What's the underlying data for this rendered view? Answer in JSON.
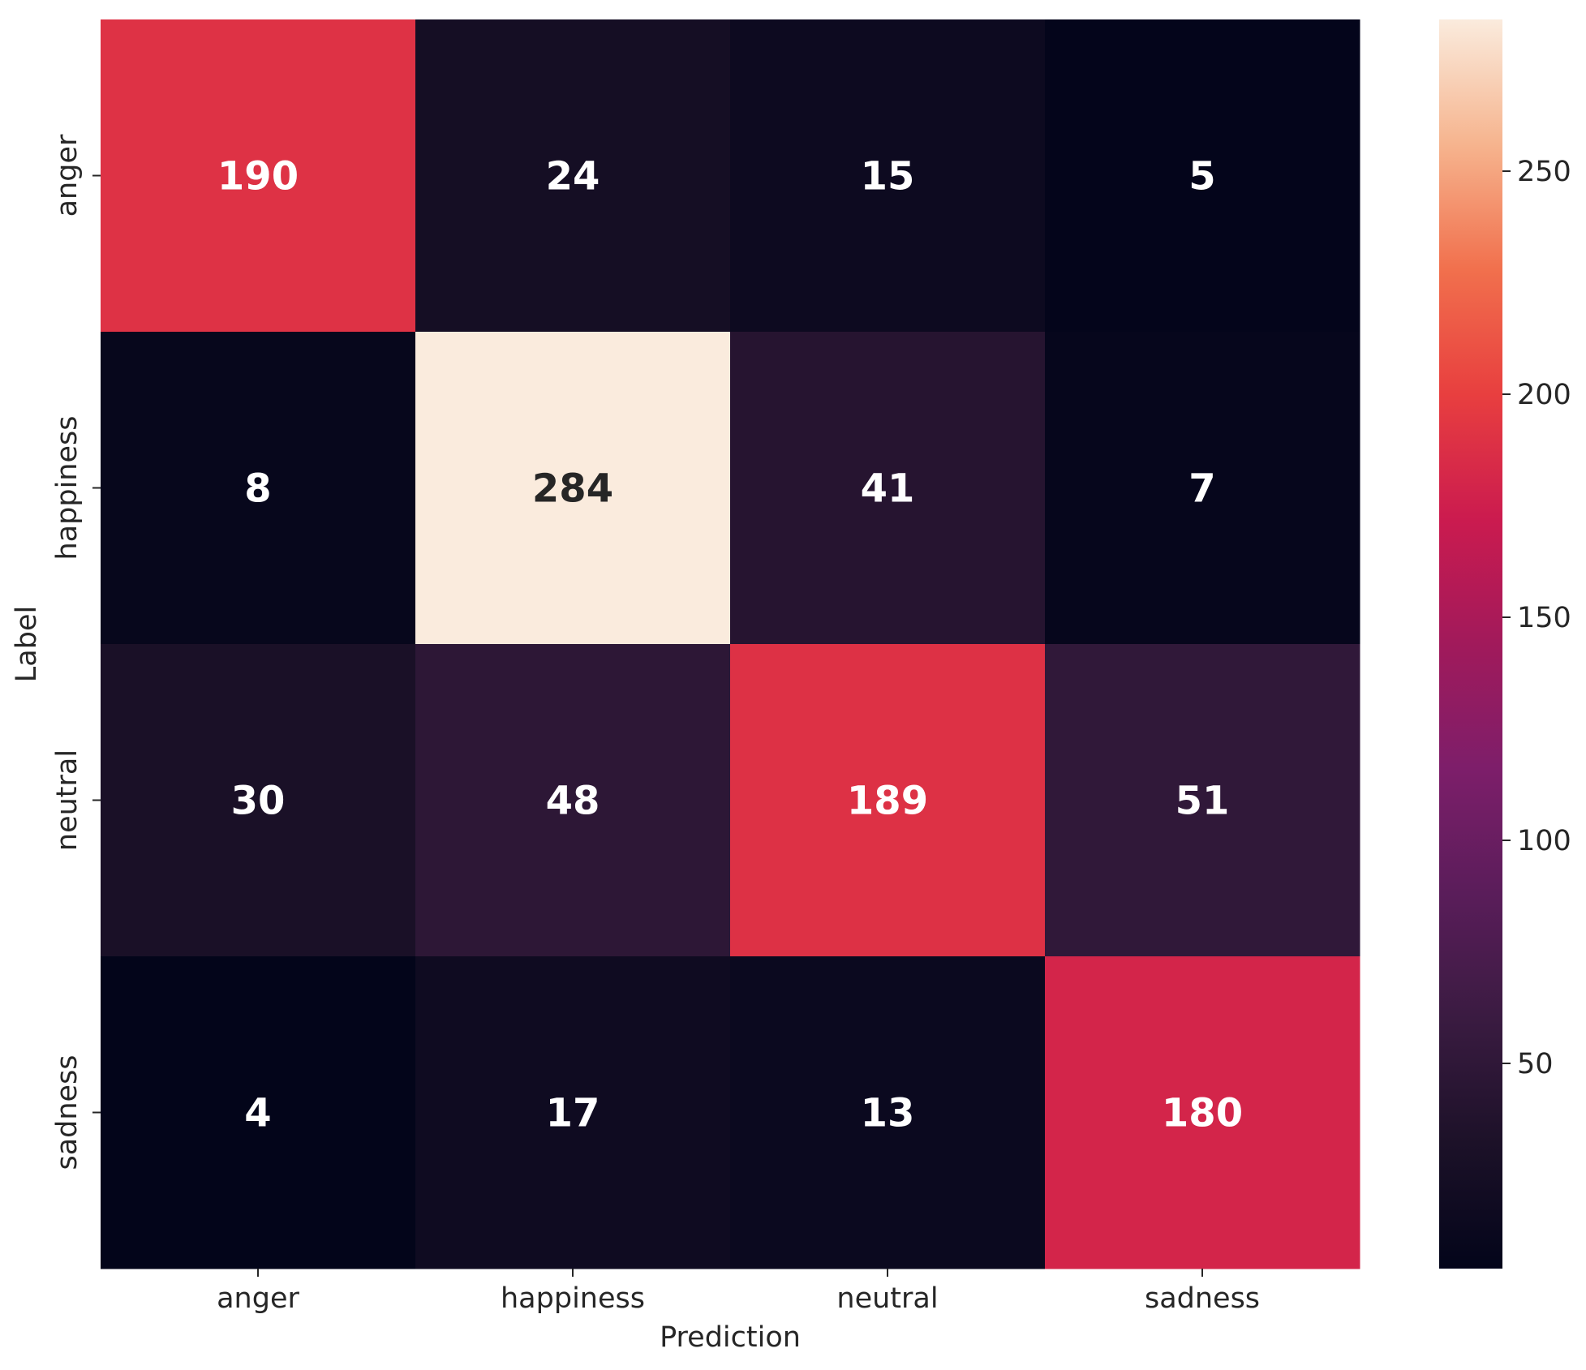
{
  "chart_data": {
    "type": "heatmap",
    "title": "",
    "xlabel": "Prediction",
    "ylabel": "Label",
    "x_categories": [
      "anger",
      "happiness",
      "neutral",
      "sadness"
    ],
    "y_categories": [
      "anger",
      "happiness",
      "neutral",
      "sadness"
    ],
    "values": [
      [
        190,
        24,
        15,
        5
      ],
      [
        8,
        284,
        41,
        7
      ],
      [
        30,
        48,
        189,
        51
      ],
      [
        4,
        17,
        13,
        180
      ]
    ],
    "colormap": "rocket",
    "colorbar": {
      "range": [
        4,
        284
      ],
      "ticks": [
        50,
        100,
        150,
        200,
        250
      ]
    },
    "annotation_colors": {
      "dark_cell_text": "#ffffff",
      "light_cell_text": "#262626"
    }
  }
}
